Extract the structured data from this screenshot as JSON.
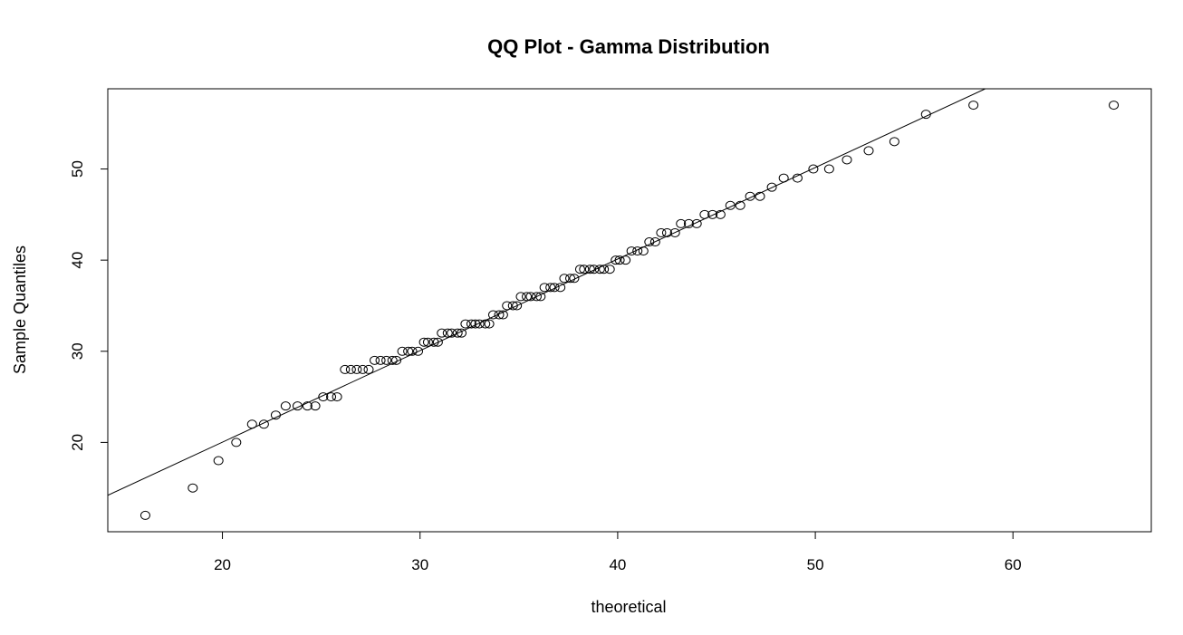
{
  "chart_data": {
    "type": "scatter",
    "title": "QQ Plot - Gamma Distribution",
    "xlabel": "theoretical",
    "ylabel": "Sample Quantiles",
    "xlim": [
      14.2,
      67.0
    ],
    "ylim": [
      10.2,
      58.8
    ],
    "x_ticks": [
      20,
      30,
      40,
      50,
      60
    ],
    "y_ticks": [
      20,
      30,
      40,
      50
    ],
    "grid": false,
    "reference_line": {
      "x1": 14.2,
      "y1": 14.2,
      "x2": 58.6,
      "y2": 58.8
    },
    "points": [
      {
        "x": 16.1,
        "y": 12
      },
      {
        "x": 18.5,
        "y": 15
      },
      {
        "x": 19.8,
        "y": 18
      },
      {
        "x": 20.7,
        "y": 20
      },
      {
        "x": 21.5,
        "y": 22
      },
      {
        "x": 22.1,
        "y": 22
      },
      {
        "x": 22.7,
        "y": 23
      },
      {
        "x": 23.2,
        "y": 24
      },
      {
        "x": 23.8,
        "y": 24
      },
      {
        "x": 24.3,
        "y": 24
      },
      {
        "x": 24.7,
        "y": 24
      },
      {
        "x": 25.1,
        "y": 25
      },
      {
        "x": 25.5,
        "y": 25
      },
      {
        "x": 25.8,
        "y": 25
      },
      {
        "x": 26.2,
        "y": 28
      },
      {
        "x": 26.5,
        "y": 28
      },
      {
        "x": 26.8,
        "y": 28
      },
      {
        "x": 27.1,
        "y": 28
      },
      {
        "x": 27.4,
        "y": 28
      },
      {
        "x": 27.7,
        "y": 29
      },
      {
        "x": 28.0,
        "y": 29
      },
      {
        "x": 28.3,
        "y": 29
      },
      {
        "x": 28.6,
        "y": 29
      },
      {
        "x": 28.8,
        "y": 29
      },
      {
        "x": 29.1,
        "y": 30
      },
      {
        "x": 29.4,
        "y": 30
      },
      {
        "x": 29.6,
        "y": 30
      },
      {
        "x": 29.9,
        "y": 30
      },
      {
        "x": 30.2,
        "y": 31
      },
      {
        "x": 30.4,
        "y": 31
      },
      {
        "x": 30.7,
        "y": 31
      },
      {
        "x": 30.9,
        "y": 31
      },
      {
        "x": 31.1,
        "y": 32
      },
      {
        "x": 31.4,
        "y": 32
      },
      {
        "x": 31.6,
        "y": 32
      },
      {
        "x": 31.9,
        "y": 32
      },
      {
        "x": 32.1,
        "y": 32
      },
      {
        "x": 32.3,
        "y": 33
      },
      {
        "x": 32.6,
        "y": 33
      },
      {
        "x": 32.8,
        "y": 33
      },
      {
        "x": 33.0,
        "y": 33
      },
      {
        "x": 33.3,
        "y": 33
      },
      {
        "x": 33.5,
        "y": 33
      },
      {
        "x": 33.7,
        "y": 34
      },
      {
        "x": 34.0,
        "y": 34
      },
      {
        "x": 34.2,
        "y": 34
      },
      {
        "x": 34.4,
        "y": 35
      },
      {
        "x": 34.7,
        "y": 35
      },
      {
        "x": 34.9,
        "y": 35
      },
      {
        "x": 35.1,
        "y": 36
      },
      {
        "x": 35.4,
        "y": 36
      },
      {
        "x": 35.6,
        "y": 36
      },
      {
        "x": 35.9,
        "y": 36
      },
      {
        "x": 36.1,
        "y": 36
      },
      {
        "x": 36.3,
        "y": 37
      },
      {
        "x": 36.6,
        "y": 37
      },
      {
        "x": 36.8,
        "y": 37
      },
      {
        "x": 37.1,
        "y": 37
      },
      {
        "x": 37.3,
        "y": 38
      },
      {
        "x": 37.6,
        "y": 38
      },
      {
        "x": 37.8,
        "y": 38
      },
      {
        "x": 38.1,
        "y": 39
      },
      {
        "x": 38.3,
        "y": 39
      },
      {
        "x": 38.6,
        "y": 39
      },
      {
        "x": 38.8,
        "y": 39
      },
      {
        "x": 39.1,
        "y": 39
      },
      {
        "x": 39.3,
        "y": 39
      },
      {
        "x": 39.6,
        "y": 39
      },
      {
        "x": 39.9,
        "y": 40
      },
      {
        "x": 40.1,
        "y": 40
      },
      {
        "x": 40.4,
        "y": 40
      },
      {
        "x": 40.7,
        "y": 41
      },
      {
        "x": 41.0,
        "y": 41
      },
      {
        "x": 41.3,
        "y": 41
      },
      {
        "x": 41.6,
        "y": 42
      },
      {
        "x": 41.9,
        "y": 42
      },
      {
        "x": 42.2,
        "y": 43
      },
      {
        "x": 42.5,
        "y": 43
      },
      {
        "x": 42.9,
        "y": 43
      },
      {
        "x": 43.2,
        "y": 44
      },
      {
        "x": 43.6,
        "y": 44
      },
      {
        "x": 44.0,
        "y": 44
      },
      {
        "x": 44.4,
        "y": 45
      },
      {
        "x": 44.8,
        "y": 45
      },
      {
        "x": 45.2,
        "y": 45
      },
      {
        "x": 45.7,
        "y": 46
      },
      {
        "x": 46.2,
        "y": 46
      },
      {
        "x": 46.7,
        "y": 47
      },
      {
        "x": 47.2,
        "y": 47
      },
      {
        "x": 47.8,
        "y": 48
      },
      {
        "x": 48.4,
        "y": 49
      },
      {
        "x": 49.1,
        "y": 49
      },
      {
        "x": 49.9,
        "y": 50
      },
      {
        "x": 50.7,
        "y": 50
      },
      {
        "x": 51.6,
        "y": 51
      },
      {
        "x": 52.7,
        "y": 52
      },
      {
        "x": 54.0,
        "y": 53
      },
      {
        "x": 55.6,
        "y": 56
      },
      {
        "x": 58.0,
        "y": 57
      },
      {
        "x": 65.1,
        "y": 57
      }
    ]
  }
}
